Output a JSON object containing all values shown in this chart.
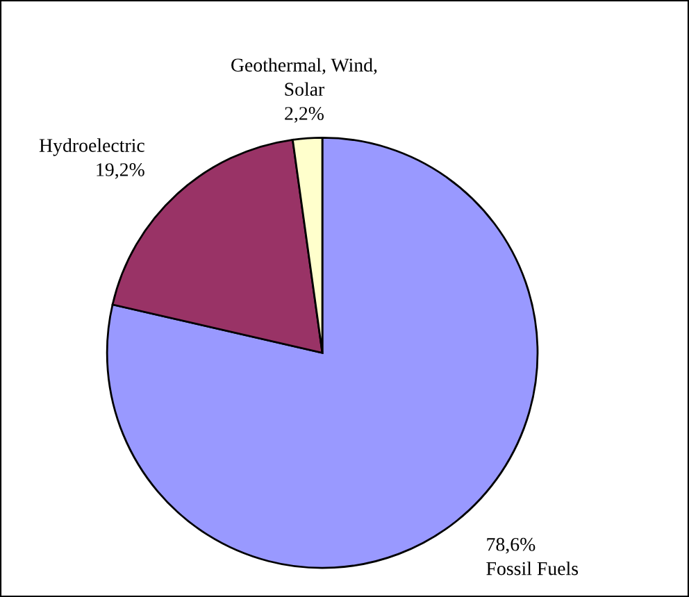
{
  "chart_data": {
    "type": "pie",
    "categories": [
      "Fossil Fuels",
      "Hydroelectric",
      "Geothermal, Wind,\nSolar"
    ],
    "values": [
      78.6,
      19.2,
      2.2
    ],
    "value_labels": [
      "78,6%",
      "19,2%",
      "2,2%"
    ],
    "colors": [
      "#9999ff",
      "#993366",
      "#ffffcc"
    ],
    "legend": false
  }
}
